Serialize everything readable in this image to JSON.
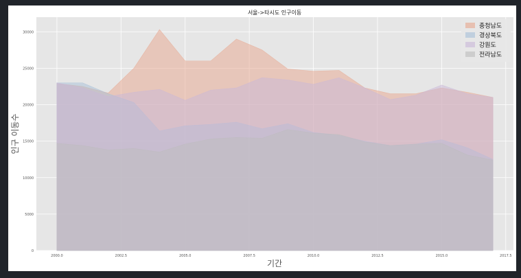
{
  "chart_data": {
    "type": "area",
    "stacked": false,
    "title": "서울->타시도 인구이동",
    "xlabel": "기간",
    "ylabel": "인구 이동수",
    "xlim": [
      1999.2,
      2017.8
    ],
    "ylim": [
      0,
      32000
    ],
    "x_ticks": [
      2000.0,
      2002.5,
      2005.0,
      2007.5,
      2010.0,
      2012.5,
      2015.0,
      2017.5
    ],
    "x_tick_labels": [
      "2000.0",
      "2002.5",
      "2005.0",
      "2007.5",
      "2010.0",
      "2012.5",
      "2015.0",
      "2017.5"
    ],
    "y_ticks": [
      0,
      5000,
      10000,
      15000,
      20000,
      25000,
      30000
    ],
    "y_tick_labels": [
      "0",
      "5000",
      "10000",
      "15000",
      "20000",
      "25000",
      "30000"
    ],
    "grid": true,
    "legend_position": "top-right",
    "x": [
      2000,
      2001,
      2002,
      2003,
      2004,
      2005,
      2006,
      2007,
      2008,
      2009,
      2010,
      2011,
      2012,
      2013,
      2014,
      2015,
      2016,
      2017
    ],
    "series": [
      {
        "name": "충청남도",
        "color": "#e8a68e",
        "values": [
          22900,
          22500,
          21600,
          25000,
          30300,
          26000,
          26000,
          29000,
          27500,
          24900,
          24600,
          24700,
          22300,
          21500,
          21500,
          22300,
          21700,
          21000
        ]
      },
      {
        "name": "경상북도",
        "color": "#a7c0d8",
        "values": [
          23000,
          23000,
          21500,
          20300,
          16400,
          17100,
          17300,
          17600,
          16700,
          17400,
          16200,
          15800,
          15000,
          14400,
          14600,
          15200,
          14100,
          12500
        ]
      },
      {
        "name": "강원도",
        "color": "#c9b7d8",
        "values": [
          23000,
          22300,
          21100,
          21700,
          22100,
          20600,
          22000,
          22300,
          23700,
          23400,
          22800,
          23700,
          22300,
          20700,
          21300,
          22700,
          21500,
          21000
        ]
      },
      {
        "name": "전라남도",
        "color": "#bdbdbd",
        "values": [
          14700,
          14400,
          13800,
          14000,
          13500,
          14600,
          15300,
          15500,
          15400,
          16600,
          16100,
          15900,
          14900,
          14400,
          14600,
          14700,
          13100,
          12400
        ]
      }
    ]
  }
}
